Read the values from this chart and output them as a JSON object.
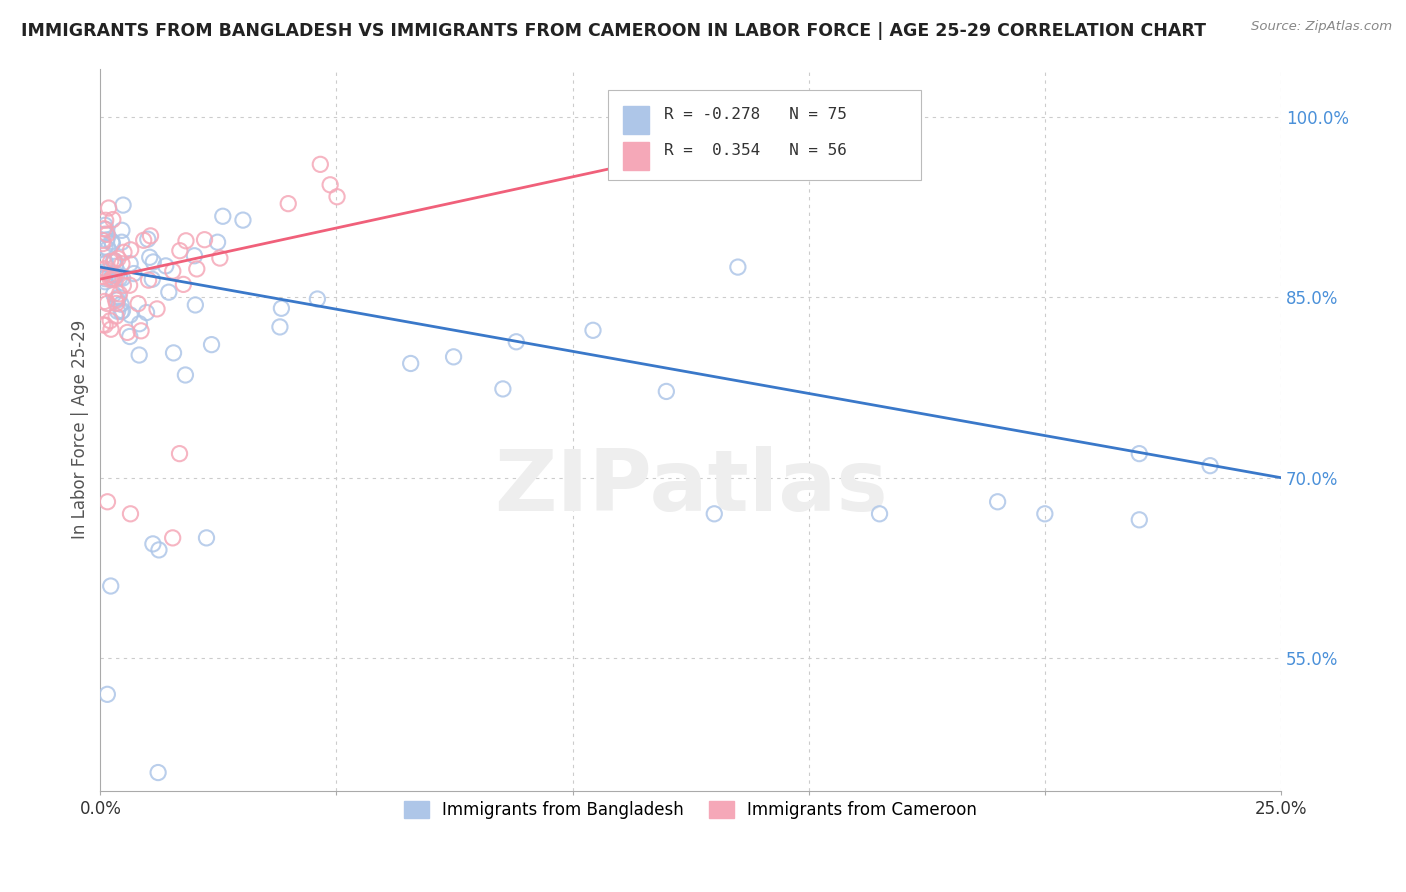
{
  "title": "IMMIGRANTS FROM BANGLADESH VS IMMIGRANTS FROM CAMEROON IN LABOR FORCE | AGE 25-29 CORRELATION CHART",
  "source": "Source: ZipAtlas.com",
  "ylabel": "In Labor Force | Age 25-29",
  "watermark": "ZIPatlas",
  "legend_bangladesh": "Immigrants from Bangladesh",
  "legend_cameroon": "Immigrants from Cameroon",
  "R_bangladesh": -0.278,
  "N_bangladesh": 75,
  "R_cameroon": 0.354,
  "N_cameroon": 56,
  "color_bangladesh": "#aec6e8",
  "color_cameroon": "#f5a8b8",
  "line_color_bangladesh": "#3a78c9",
  "line_color_cameroon": "#f0607a",
  "xlim": [
    0.0,
    0.25
  ],
  "ylim": [
    0.44,
    1.04
  ],
  "ytick_positions": [
    0.55,
    0.7,
    0.85,
    1.0
  ],
  "ytick_labels": [
    "55.0%",
    "70.0%",
    "85.0%",
    "100.0%"
  ],
  "bd_line_x0": 0.0,
  "bd_line_y0": 0.875,
  "bd_line_x1": 0.25,
  "bd_line_y1": 0.7,
  "cm_line_x0": 0.0,
  "cm_line_y0": 0.865,
  "cm_line_x1": 0.16,
  "cm_line_y1": 1.001
}
